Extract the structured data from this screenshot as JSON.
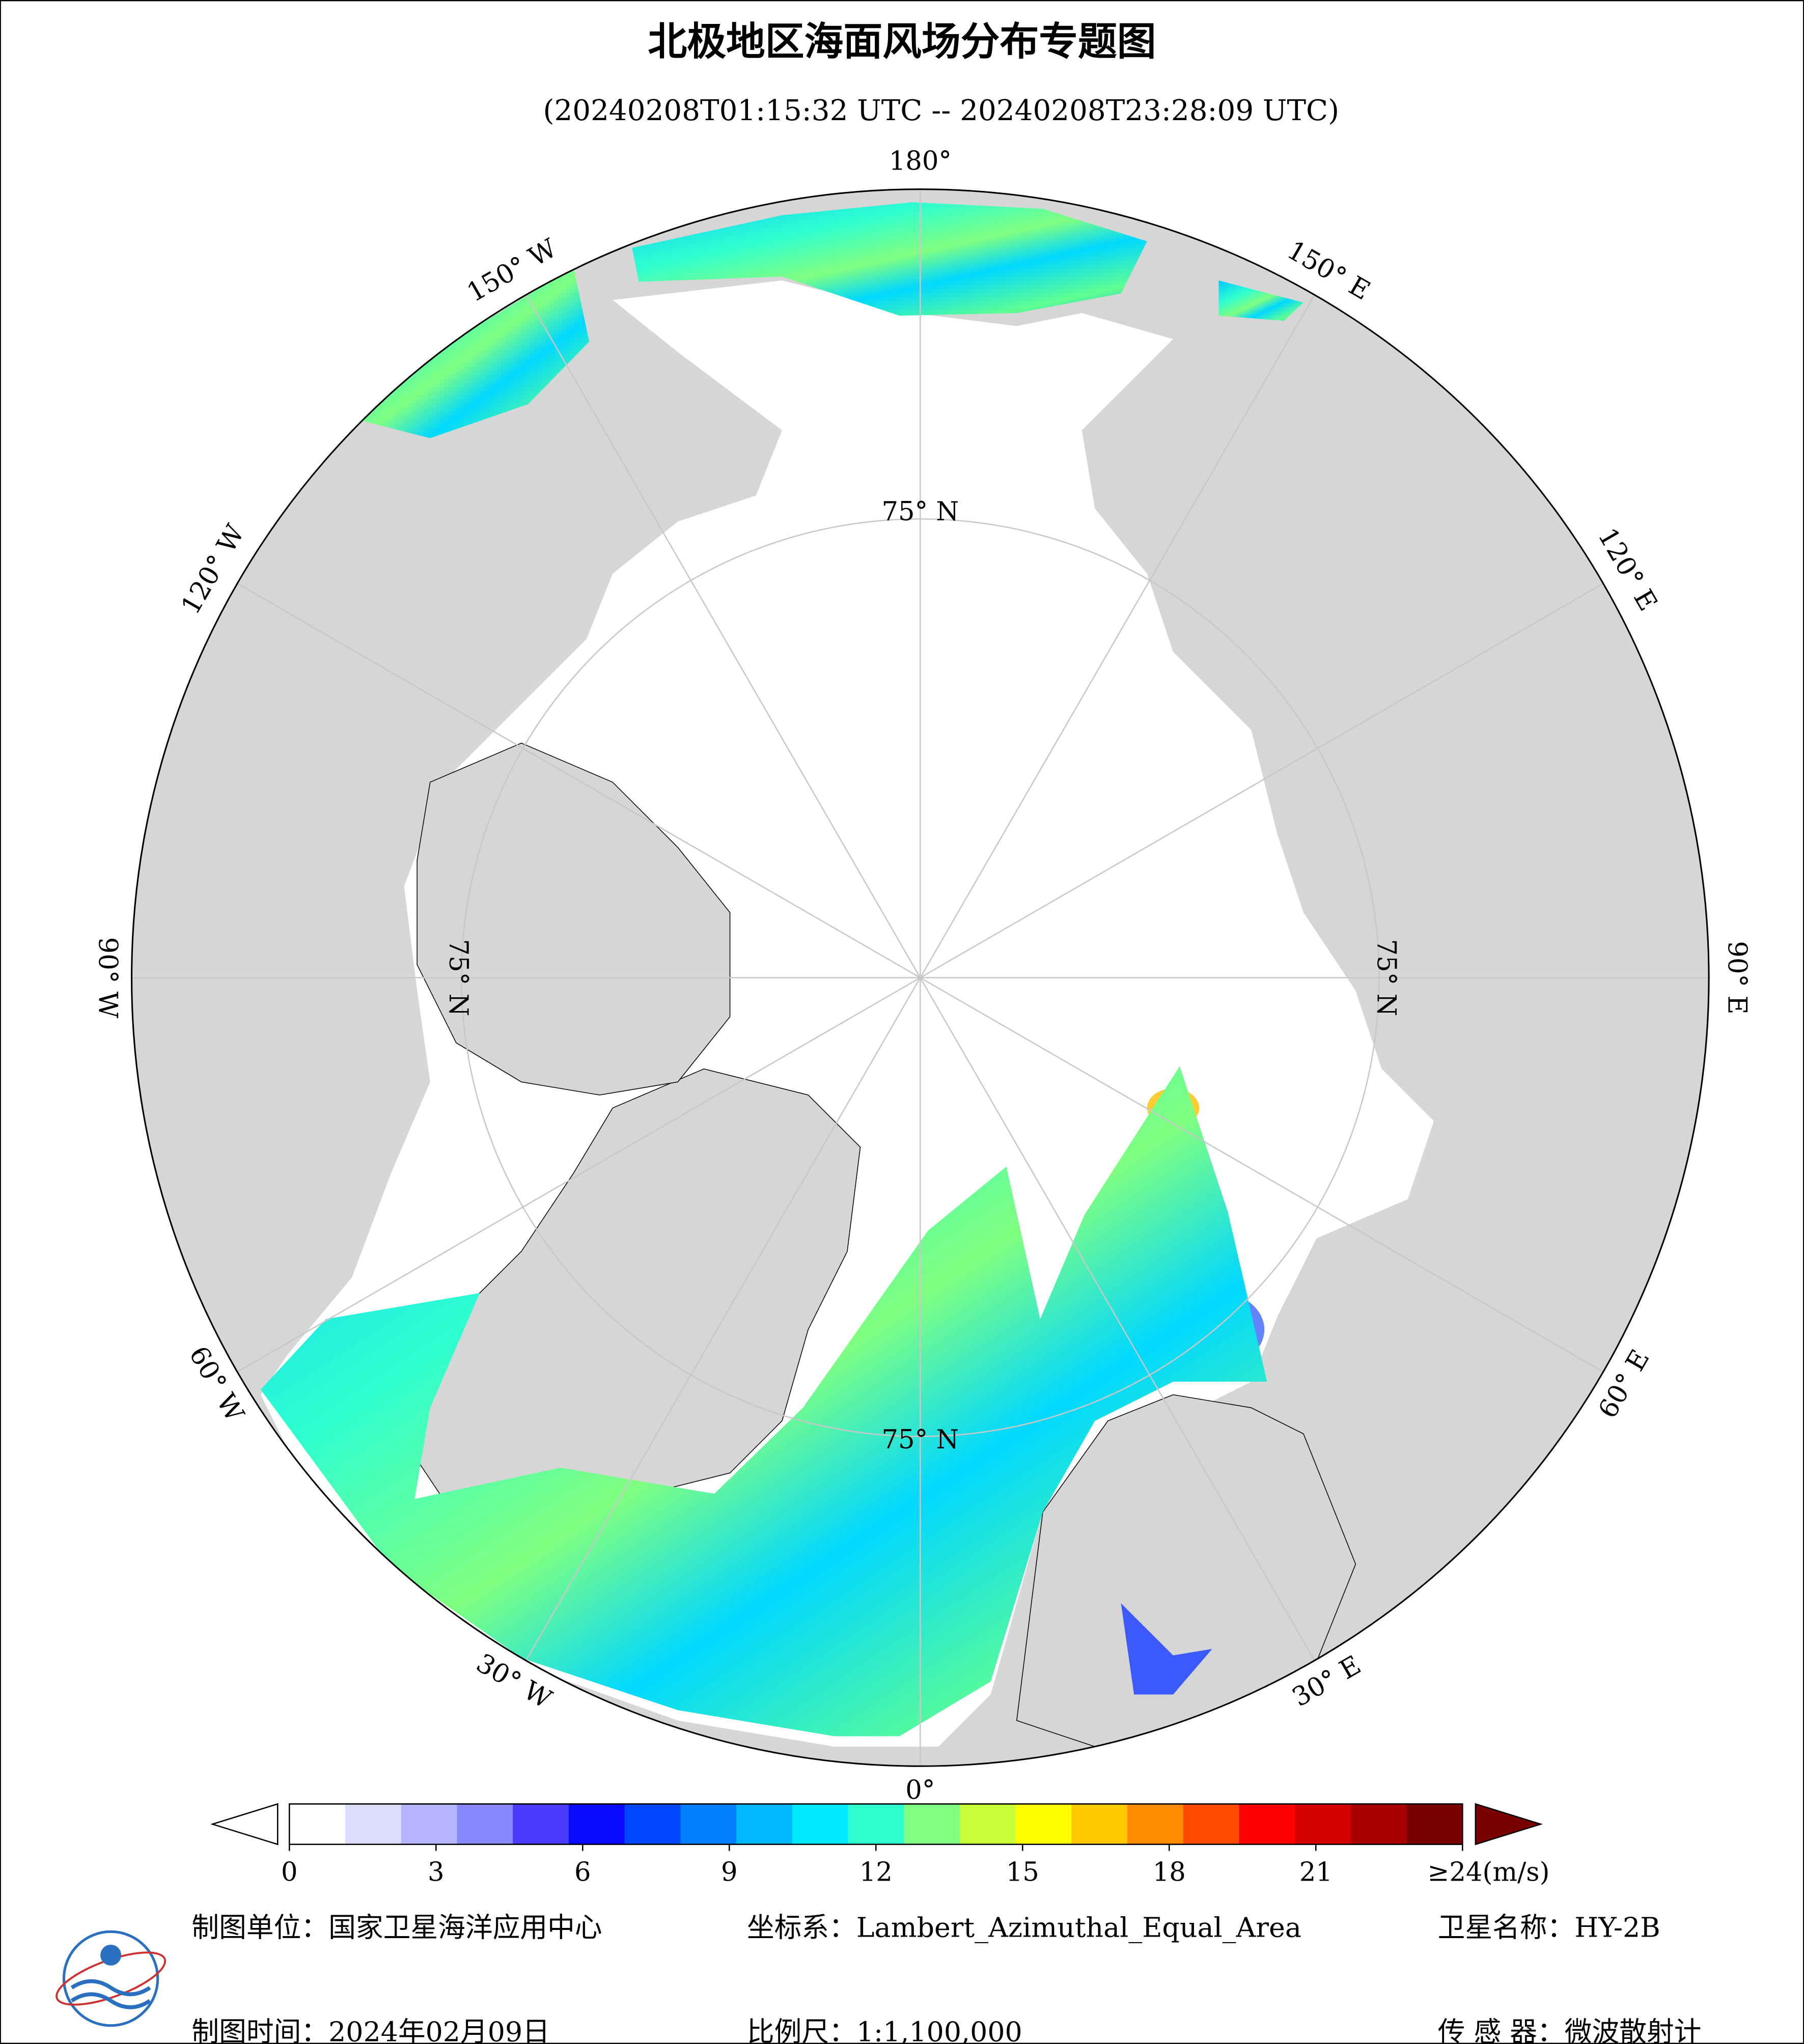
{
  "header": {
    "title": "北极地区海面风场分布专题图",
    "subtitle": "(20240208T01:15:32 UTC -- 20240208T23:28:09 UTC)"
  },
  "map": {
    "lon_ticks": [
      {
        "value": 180,
        "label": "180°"
      },
      {
        "value": 150,
        "label": "150° E"
      },
      {
        "value": 120,
        "label": "120° E"
      },
      {
        "value": 90,
        "label": "90° E"
      },
      {
        "value": 60,
        "label": "60° E"
      },
      {
        "value": 30,
        "label": "30° E"
      },
      {
        "value": 0,
        "label": "0°"
      },
      {
        "value": -30,
        "label": "30° W"
      },
      {
        "value": -60,
        "label": "60° W"
      },
      {
        "value": -90,
        "label": "90° W"
      },
      {
        "value": -120,
        "label": "120° W"
      },
      {
        "value": -150,
        "label": "150° W"
      }
    ],
    "lat_label": "75° N"
  },
  "colorbar": {
    "range": [
      0,
      24
    ],
    "ticks": [
      0,
      3,
      6,
      9,
      12,
      15,
      18,
      21,
      {
        "value": 24,
        "label": "≥24(m/s)"
      }
    ],
    "colors": [
      "#ffffff",
      "#dcdcff",
      "#b4b4ff",
      "#8888ff",
      "#4a3cff",
      "#0a0aff",
      "#0046ff",
      "#0080ff",
      "#00b8ff",
      "#00eaff",
      "#30ffd0",
      "#80ff80",
      "#c8ff38",
      "#ffff00",
      "#ffc800",
      "#ff8c00",
      "#ff4a00",
      "#ff0000",
      "#d40000",
      "#a80000",
      "#7a0000"
    ],
    "under_color": "#ffffff",
    "over_color": "#7a0000"
  },
  "footer": {
    "unit": "制图单位：国家卫星海洋应用中心",
    "date": "制图时间：2024年02月09日",
    "crs": "坐标系：Lambert_Azimuthal_Equal_Area",
    "scale": "比例尺：1:1,100,000",
    "satellite": "卫星名称：HY-2B",
    "sensor": "传 感 器：微波散射计"
  }
}
